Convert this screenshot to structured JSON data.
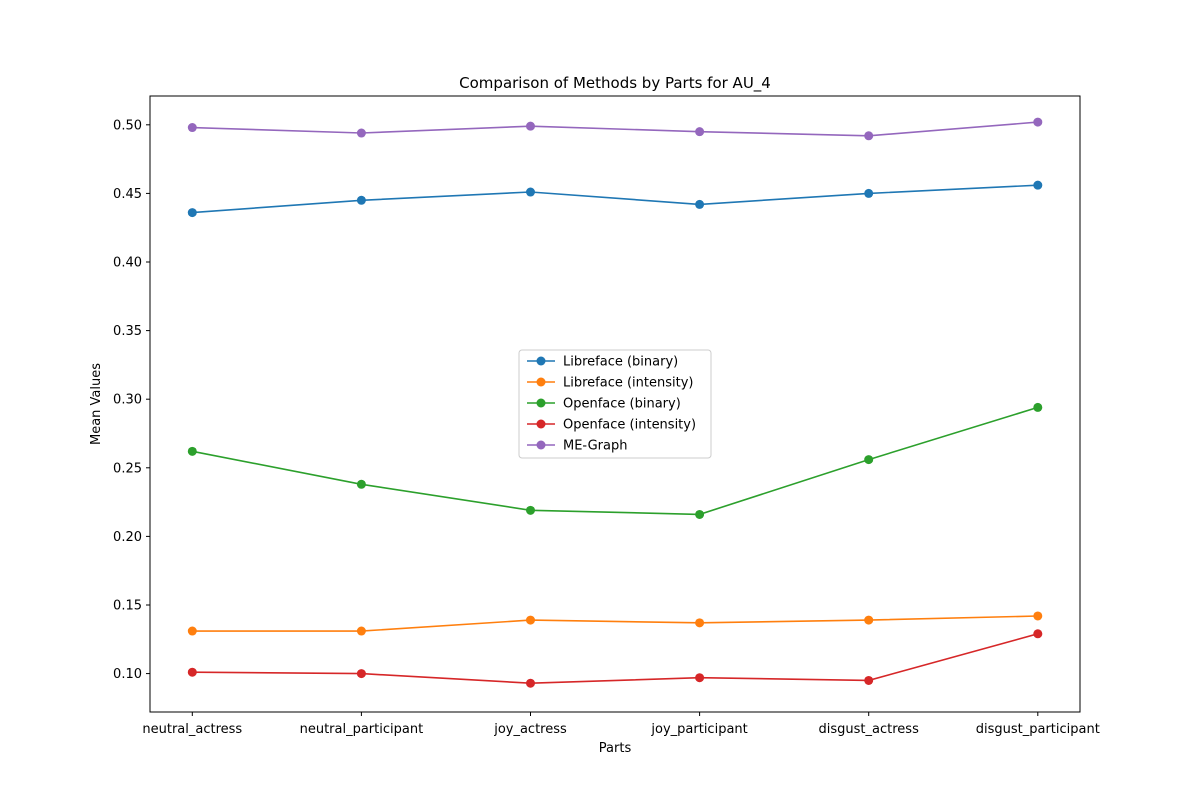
{
  "chart_data": {
    "type": "line",
    "title": "Comparison of Methods by Parts for AU_4",
    "xlabel": "Parts",
    "ylabel": "Mean Values",
    "categories": [
      "neutral_actress",
      "neutral_participant",
      "joy_actress",
      "joy_participant",
      "disgust_actress",
      "disgust_participant"
    ],
    "ylim": [
      0.072,
      0.521
    ],
    "yticks": [
      "0.10",
      "0.15",
      "0.20",
      "0.25",
      "0.30",
      "0.35",
      "0.40",
      "0.45",
      "0.50"
    ],
    "grid": false,
    "legend_position": "center",
    "series": [
      {
        "name": "Libreface (binary)",
        "color": "#1f77b4",
        "values": [
          0.436,
          0.445,
          0.451,
          0.442,
          0.45,
          0.456
        ]
      },
      {
        "name": "Libreface (intensity)",
        "color": "#ff7f0e",
        "values": [
          0.131,
          0.131,
          0.139,
          0.137,
          0.139,
          0.142
        ]
      },
      {
        "name": "Openface (binary)",
        "color": "#2ca02c",
        "values": [
          0.262,
          0.238,
          0.219,
          0.216,
          0.256,
          0.294
        ]
      },
      {
        "name": "Openface (intensity)",
        "color": "#d62728",
        "values": [
          0.101,
          0.1,
          0.093,
          0.097,
          0.095,
          0.129
        ]
      },
      {
        "name": "ME-Graph",
        "color": "#9467bd",
        "values": [
          0.498,
          0.494,
          0.499,
          0.495,
          0.492,
          0.502
        ]
      }
    ]
  }
}
